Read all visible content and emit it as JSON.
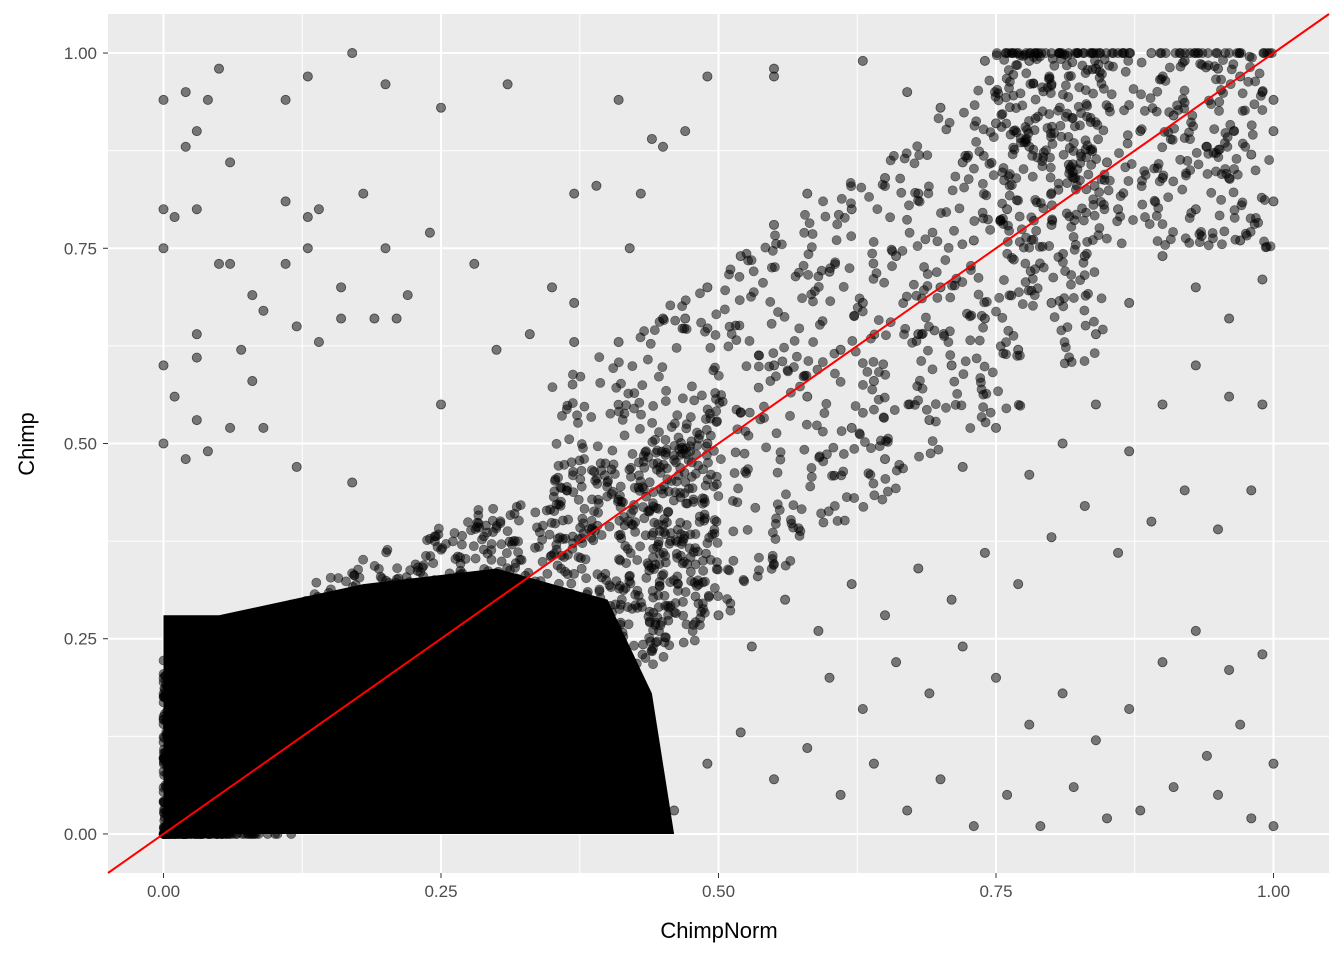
{
  "chart_data": {
    "type": "scatter",
    "title": "",
    "xlabel": "ChimpNorm",
    "ylabel": "Chimp",
    "xlim": [
      -0.05,
      1.05
    ],
    "ylim": [
      -0.05,
      1.05
    ],
    "x_ticks": [
      "0.00",
      "0.25",
      "0.50",
      "0.75",
      "1.00"
    ],
    "y_ticks": [
      "0.00",
      "0.25",
      "0.50",
      "0.75",
      "1.00"
    ],
    "grid": true,
    "legend": "none",
    "panel_background": "#ebebeb",
    "grid_color": "#ffffff",
    "point_color": "#000000",
    "point_opacity": 0.5,
    "reference_line": {
      "slope": 1,
      "intercept": 0,
      "color": "#ff0000"
    },
    "series": [
      {
        "points": [
          [
            0.17,
            1.0
          ],
          [
            0.2,
            0.96
          ],
          [
            0.31,
            0.96
          ],
          [
            0.13,
            0.97
          ],
          [
            0.05,
            0.98
          ],
          [
            0.0,
            0.94
          ],
          [
            0.02,
            0.95
          ],
          [
            0.11,
            0.94
          ],
          [
            0.25,
            0.93
          ],
          [
            0.04,
            0.94
          ],
          [
            0.06,
            0.86
          ],
          [
            0.02,
            0.88
          ],
          [
            0.03,
            0.9
          ],
          [
            0.0,
            0.8
          ],
          [
            0.01,
            0.79
          ],
          [
            0.03,
            0.8
          ],
          [
            0.13,
            0.79
          ],
          [
            0.18,
            0.82
          ],
          [
            0.14,
            0.8
          ],
          [
            0.11,
            0.81
          ],
          [
            0.0,
            0.75
          ],
          [
            0.05,
            0.73
          ],
          [
            0.06,
            0.73
          ],
          [
            0.13,
            0.75
          ],
          [
            0.2,
            0.75
          ],
          [
            0.24,
            0.77
          ],
          [
            0.16,
            0.7
          ],
          [
            0.08,
            0.69
          ],
          [
            0.09,
            0.67
          ],
          [
            0.11,
            0.73
          ],
          [
            0.03,
            0.64
          ],
          [
            0.12,
            0.65
          ],
          [
            0.19,
            0.66
          ],
          [
            0.21,
            0.66
          ],
          [
            0.22,
            0.69
          ],
          [
            0.16,
            0.66
          ],
          [
            0.14,
            0.63
          ],
          [
            0.07,
            0.62
          ],
          [
            0.0,
            0.6
          ],
          [
            0.01,
            0.56
          ],
          [
            0.03,
            0.61
          ],
          [
            0.08,
            0.58
          ],
          [
            0.06,
            0.52
          ],
          [
            0.03,
            0.53
          ],
          [
            0.0,
            0.5
          ],
          [
            0.02,
            0.48
          ],
          [
            0.04,
            0.49
          ],
          [
            0.09,
            0.52
          ],
          [
            0.12,
            0.47
          ],
          [
            0.17,
            0.45
          ],
          [
            0.25,
            0.55
          ],
          [
            0.3,
            0.62
          ],
          [
            0.33,
            0.64
          ],
          [
            0.37,
            0.63
          ],
          [
            0.41,
            0.63
          ],
          [
            0.45,
            0.66
          ],
          [
            0.37,
            0.68
          ],
          [
            0.28,
            0.73
          ],
          [
            0.35,
            0.7
          ],
          [
            0.42,
            0.75
          ],
          [
            0.37,
            0.82
          ],
          [
            0.39,
            0.83
          ],
          [
            0.43,
            0.82
          ],
          [
            0.45,
            0.88
          ],
          [
            0.44,
            0.89
          ],
          [
            0.47,
            0.9
          ],
          [
            0.49,
            0.97
          ],
          [
            0.41,
            0.94
          ],
          [
            0.55,
            0.98
          ],
          [
            0.55,
            0.97
          ],
          [
            0.63,
            0.99
          ],
          [
            0.67,
            0.95
          ],
          [
            0.7,
            0.93
          ],
          [
            0.74,
            0.99
          ],
          [
            0.78,
            0.99
          ],
          [
            0.8,
            0.96
          ],
          [
            0.84,
            0.98
          ],
          [
            0.87,
            1.0
          ],
          [
            0.89,
            1.0
          ],
          [
            0.92,
            0.99
          ],
          [
            0.95,
            0.98
          ],
          [
            0.97,
            0.97
          ],
          [
            0.99,
            0.95
          ],
          [
            1.0,
            0.94
          ],
          [
            1.0,
            0.9
          ],
          [
            0.98,
            0.87
          ],
          [
            0.96,
            0.84
          ],
          [
            0.94,
            0.88
          ],
          [
            0.91,
            0.92
          ],
          [
            0.88,
            0.9
          ],
          [
            0.85,
            0.86
          ],
          [
            0.82,
            0.84
          ],
          [
            0.78,
            0.88
          ],
          [
            0.75,
            0.91
          ],
          [
            0.72,
            0.86
          ],
          [
            0.68,
            0.82
          ],
          [
            0.65,
            0.84
          ],
          [
            0.62,
            0.8
          ],
          [
            0.58,
            0.82
          ],
          [
            0.55,
            0.78
          ],
          [
            0.52,
            0.74
          ],
          [
            0.49,
            0.7
          ],
          [
            0.47,
            0.66
          ],
          [
            0.6,
            0.72
          ],
          [
            0.63,
            0.68
          ],
          [
            0.66,
            0.74
          ],
          [
            0.7,
            0.7
          ],
          [
            0.73,
            0.76
          ],
          [
            0.76,
            0.8
          ],
          [
            0.8,
            0.78
          ],
          [
            0.83,
            0.74
          ],
          [
            0.86,
            0.8
          ],
          [
            0.9,
            0.84
          ],
          [
            0.93,
            0.8
          ],
          [
            0.97,
            0.76
          ],
          [
            1.0,
            0.81
          ],
          [
            0.99,
            0.71
          ],
          [
            0.96,
            0.66
          ],
          [
            0.93,
            0.7
          ],
          [
            0.9,
            0.74
          ],
          [
            0.87,
            0.68
          ],
          [
            0.84,
            0.64
          ],
          [
            0.8,
            0.68
          ],
          [
            0.77,
            0.62
          ],
          [
            0.74,
            0.66
          ],
          [
            0.71,
            0.6
          ],
          [
            0.68,
            0.64
          ],
          [
            0.64,
            0.58
          ],
          [
            0.61,
            0.62
          ],
          [
            0.58,
            0.56
          ],
          [
            0.55,
            0.6
          ],
          [
            0.52,
            0.54
          ],
          [
            0.49,
            0.5
          ],
          [
            0.62,
            0.52
          ],
          [
            0.65,
            0.48
          ],
          [
            0.69,
            0.53
          ],
          [
            0.72,
            0.47
          ],
          [
            0.75,
            0.52
          ],
          [
            0.78,
            0.46
          ],
          [
            0.81,
            0.5
          ],
          [
            0.84,
            0.55
          ],
          [
            0.87,
            0.49
          ],
          [
            0.9,
            0.55
          ],
          [
            0.93,
            0.6
          ],
          [
            0.96,
            0.56
          ],
          [
            0.99,
            0.55
          ],
          [
            0.98,
            0.44
          ],
          [
            0.95,
            0.39
          ],
          [
            0.92,
            0.44
          ],
          [
            0.89,
            0.4
          ],
          [
            0.86,
            0.36
          ],
          [
            0.83,
            0.42
          ],
          [
            0.8,
            0.38
          ],
          [
            0.77,
            0.32
          ],
          [
            0.74,
            0.36
          ],
          [
            0.71,
            0.3
          ],
          [
            0.68,
            0.34
          ],
          [
            0.65,
            0.28
          ],
          [
            0.62,
            0.32
          ],
          [
            0.59,
            0.26
          ],
          [
            0.56,
            0.3
          ],
          [
            0.53,
            0.24
          ],
          [
            0.5,
            0.28
          ],
          [
            0.6,
            0.2
          ],
          [
            0.63,
            0.16
          ],
          [
            0.66,
            0.22
          ],
          [
            0.69,
            0.18
          ],
          [
            0.72,
            0.24
          ],
          [
            0.75,
            0.2
          ],
          [
            0.78,
            0.14
          ],
          [
            0.81,
            0.18
          ],
          [
            0.84,
            0.12
          ],
          [
            0.87,
            0.16
          ],
          [
            0.9,
            0.22
          ],
          [
            0.93,
            0.26
          ],
          [
            0.96,
            0.21
          ],
          [
            0.99,
            0.23
          ],
          [
            1.0,
            0.09
          ],
          [
            0.97,
            0.14
          ],
          [
            0.94,
            0.1
          ],
          [
            0.91,
            0.06
          ],
          [
            0.88,
            0.03
          ],
          [
            0.85,
            0.02
          ],
          [
            0.82,
            0.06
          ],
          [
            0.79,
            0.01
          ],
          [
            0.76,
            0.05
          ],
          [
            0.73,
            0.01
          ],
          [
            0.7,
            0.07
          ],
          [
            0.67,
            0.03
          ],
          [
            0.64,
            0.09
          ],
          [
            0.61,
            0.05
          ],
          [
            0.58,
            0.11
          ],
          [
            0.55,
            0.07
          ],
          [
            0.52,
            0.13
          ],
          [
            0.49,
            0.09
          ],
          [
            0.46,
            0.03
          ],
          [
            0.43,
            0.07
          ],
          [
            0.95,
            0.05
          ],
          [
            0.98,
            0.02
          ],
          [
            1.0,
            0.01
          ]
        ]
      }
    ]
  }
}
